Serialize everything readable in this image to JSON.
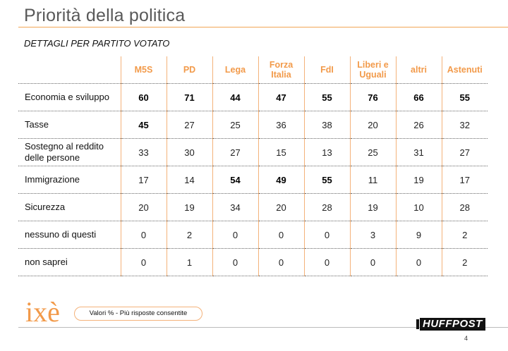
{
  "header": {
    "title": "Priorità della politica",
    "subtitle": "DETTAGLI PER PARTITO VOTATO"
  },
  "table": {
    "columns": [
      "M5S",
      "PD",
      "Lega",
      "Forza Italia",
      "FdI",
      "Liberi e Uguali",
      "altri",
      "Astenuti"
    ],
    "rows": [
      {
        "label": "Economia e sviluppo",
        "values": [
          "60",
          "71",
          "44",
          "47",
          "55",
          "76",
          "66",
          "55"
        ],
        "bold": [
          true,
          true,
          true,
          true,
          true,
          true,
          true,
          true
        ]
      },
      {
        "label": "Tasse",
        "values": [
          "45",
          "27",
          "25",
          "36",
          "38",
          "20",
          "26",
          "32"
        ],
        "bold": [
          true,
          false,
          false,
          false,
          false,
          false,
          false,
          false
        ]
      },
      {
        "label": "Sostegno al reddito delle persone",
        "values": [
          "33",
          "30",
          "27",
          "15",
          "13",
          "25",
          "31",
          "27"
        ],
        "bold": [
          false,
          false,
          false,
          false,
          false,
          false,
          false,
          false
        ]
      },
      {
        "label": "Immigrazione",
        "values": [
          "17",
          "14",
          "54",
          "49",
          "55",
          "11",
          "19",
          "17"
        ],
        "bold": [
          false,
          false,
          true,
          true,
          true,
          false,
          false,
          false
        ]
      },
      {
        "label": "Sicurezza",
        "values": [
          "20",
          "19",
          "34",
          "20",
          "28",
          "19",
          "10",
          "28"
        ],
        "bold": [
          false,
          false,
          false,
          false,
          false,
          false,
          false,
          false
        ]
      },
      {
        "label": "nessuno di questi",
        "values": [
          "0",
          "2",
          "0",
          "0",
          "0",
          "3",
          "9",
          "2"
        ],
        "bold": [
          false,
          false,
          false,
          false,
          false,
          false,
          false,
          false
        ]
      },
      {
        "label": "non saprei",
        "values": [
          "0",
          "1",
          "0",
          "0",
          "0",
          "0",
          "0",
          "2"
        ],
        "bold": [
          false,
          false,
          false,
          false,
          false,
          false,
          false,
          false
        ]
      }
    ]
  },
  "footer": {
    "logo": "ixè",
    "note": "Valori % - Più risposte consentite",
    "brand": "HUFFPOST",
    "page_number": "4"
  },
  "colors": {
    "accent": "#f29a4a",
    "title": "#595959"
  }
}
